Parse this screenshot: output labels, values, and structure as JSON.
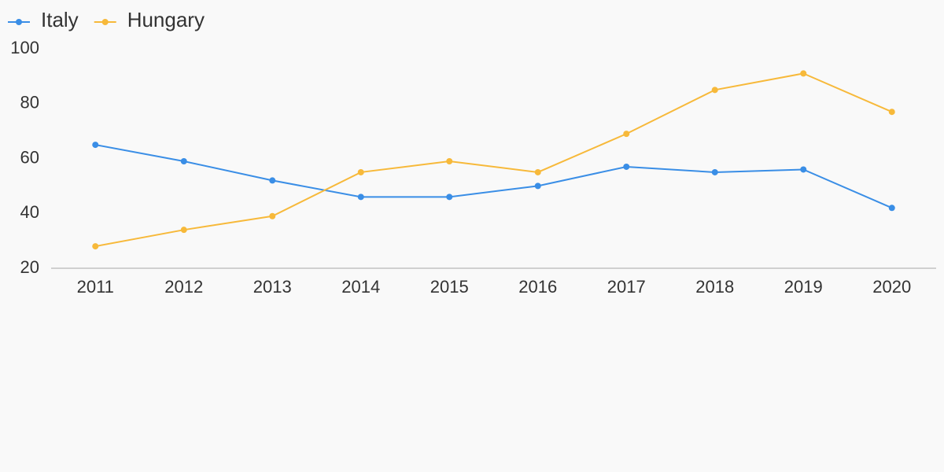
{
  "chart_data": {
    "type": "line",
    "x": [
      2011,
      2012,
      2013,
      2014,
      2015,
      2016,
      2017,
      2018,
      2019,
      2020
    ],
    "series": [
      {
        "name": "Italy",
        "color": "#3a8ee6",
        "values": [
          65,
          59,
          52,
          46,
          46,
          50,
          57,
          55,
          56,
          42
        ]
      },
      {
        "name": "Hungary",
        "color": "#f7b93a",
        "values": [
          28,
          34,
          39,
          55,
          59,
          55,
          69,
          85,
          91,
          77
        ]
      }
    ],
    "ylim": [
      20,
      100
    ],
    "yticks": [
      20,
      40,
      60,
      80,
      100
    ],
    "grid": false
  }
}
